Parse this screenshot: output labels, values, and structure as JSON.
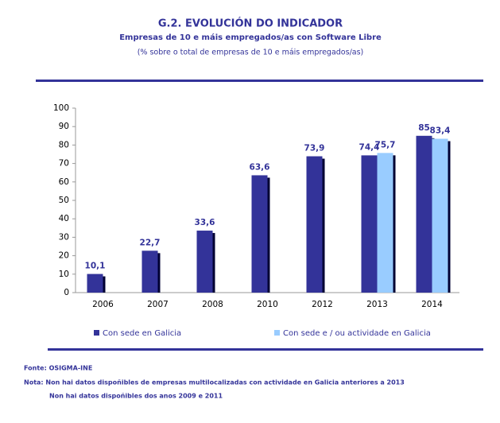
{
  "chart_data": {
    "type": "bar",
    "title": "G.2. EVOLUCIÓN DO INDICADOR",
    "subtitle": "Empresas de 10 e máis empregados/as con Software Libre",
    "unit_note": "(% sobre o total de empresas de 10 e máis empregados/as)",
    "categories": [
      "2006",
      "2007",
      "2008",
      "2010",
      "2012",
      "2013",
      "2014"
    ],
    "series": [
      {
        "name": "Con sede en Galicia",
        "color": "#333399",
        "values": [
          10.1,
          22.7,
          33.6,
          63.6,
          73.9,
          74.4,
          85
        ],
        "value_labels": [
          "10,1",
          "22,7",
          "33,6",
          "63,6",
          "73,9",
          "74,4",
          "85"
        ]
      },
      {
        "name": "Con sede e / ou actividade en Galicia",
        "color": "#99ccff",
        "values": [
          null,
          null,
          null,
          null,
          null,
          75.7,
          83.4
        ],
        "value_labels": [
          null,
          null,
          null,
          null,
          null,
          "75,7",
          "83,4"
        ]
      }
    ],
    "ylim": [
      0,
      100
    ],
    "yticks": [
      0,
      10,
      20,
      30,
      40,
      50,
      60,
      70,
      80,
      90,
      100
    ],
    "grid": false,
    "legend": "bottom",
    "source": "Fonte: OSIGMA-INE",
    "notes": [
      "Nota: Non hai datos dispoñibles de empresas multilocalizadas con actividade en Galicia anteriores a 2013",
      "Non hai datos dispoñibles dos anos 2009 e 2011"
    ]
  }
}
